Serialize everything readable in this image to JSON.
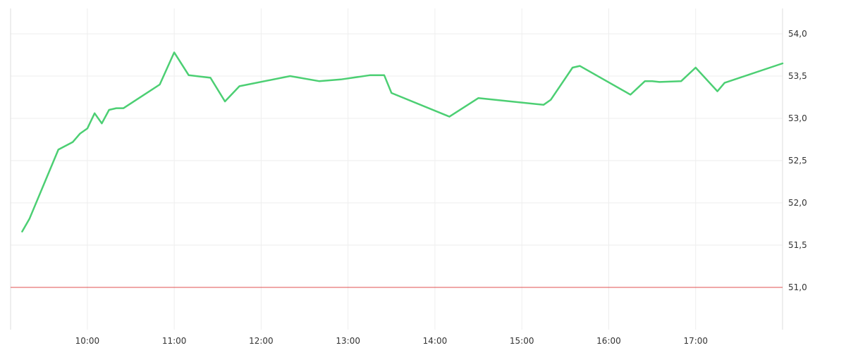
{
  "chart_data": {
    "type": "line",
    "title": "",
    "xlabel": "",
    "ylabel": "",
    "x_ticks": [
      "10:00",
      "11:00",
      "12:00",
      "13:00",
      "14:00",
      "15:00",
      "16:00",
      "17:00"
    ],
    "y_ticks": [
      "54,0",
      "53,5",
      "53,0",
      "52,5",
      "52,0",
      "51,5",
      "51,0"
    ],
    "y_tick_values": [
      54.0,
      53.5,
      53.0,
      52.5,
      52.0,
      51.5,
      51.0
    ],
    "xlim": [
      "09:07",
      "18:00"
    ],
    "ylim": [
      50.55,
      54.3
    ],
    "grid": true,
    "y_axis_position": "right",
    "colors": {
      "series": "#4ccf73",
      "reference": "#e05050"
    },
    "reference_line": {
      "value": 51.0
    },
    "series": [
      {
        "x": [
          "09:15",
          "09:20",
          "09:40",
          "09:50",
          "09:55",
          "10:00",
          "10:05",
          "10:10",
          "10:15",
          "10:20",
          "10:25",
          "10:50",
          "11:00",
          "11:10",
          "11:25",
          "11:35",
          "11:45",
          "12:20",
          "12:40",
          "12:55",
          "13:15",
          "13:25",
          "13:30",
          "14:10",
          "14:30",
          "15:15",
          "15:20",
          "15:35",
          "15:40",
          "16:15",
          "16:25",
          "16:30",
          "16:35",
          "16:50",
          "17:00",
          "17:15",
          "17:20",
          "18:00"
        ],
        "y": [
          51.66,
          51.81,
          52.63,
          52.72,
          52.82,
          52.88,
          53.06,
          52.94,
          53.1,
          53.12,
          53.12,
          53.4,
          53.78,
          53.51,
          53.48,
          53.2,
          53.38,
          53.5,
          53.44,
          53.46,
          53.51,
          53.51,
          53.3,
          53.02,
          53.24,
          53.16,
          53.22,
          53.6,
          53.62,
          53.28,
          53.44,
          53.44,
          53.43,
          53.44,
          53.6,
          53.32,
          53.42,
          53.65
        ]
      }
    ]
  }
}
